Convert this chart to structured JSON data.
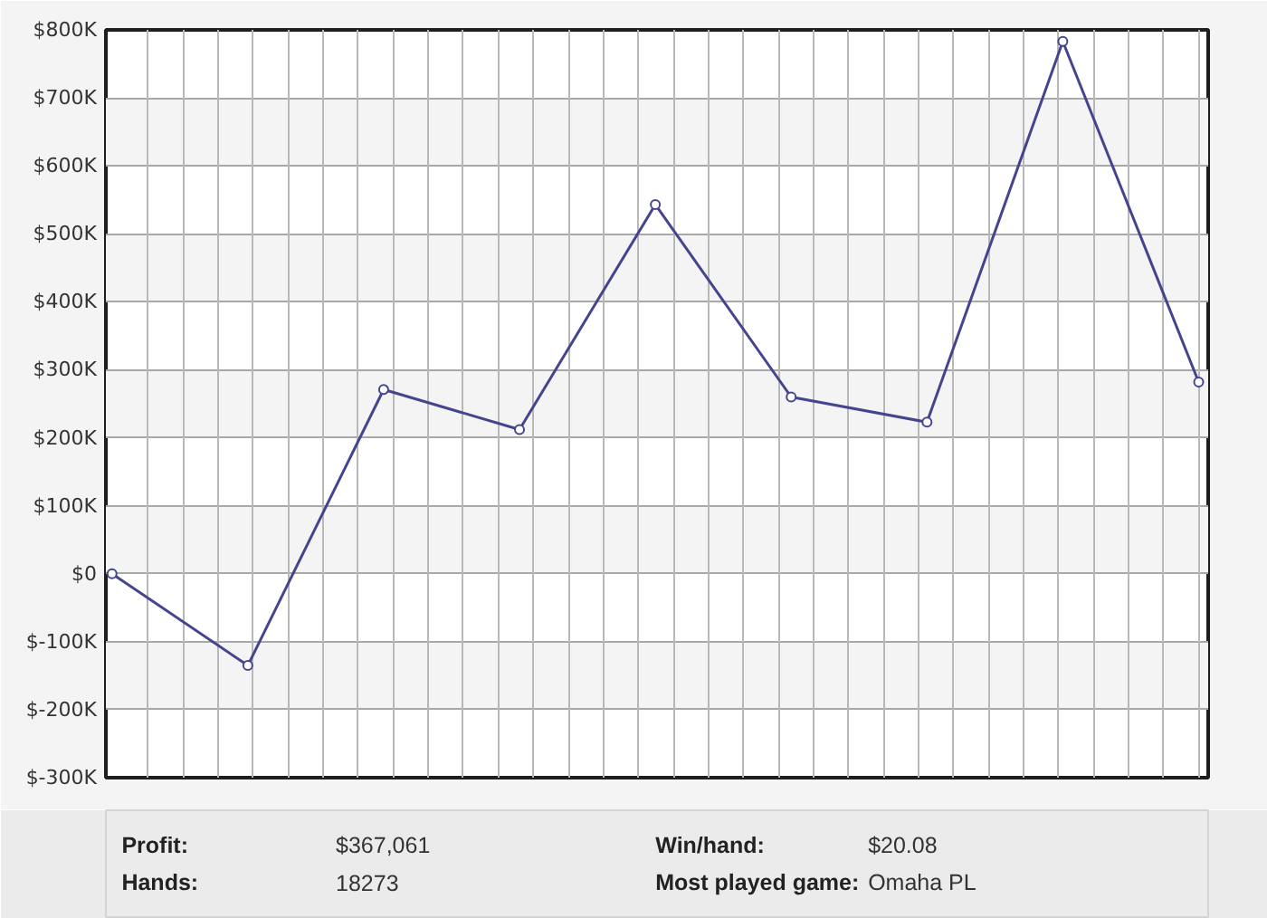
{
  "chart_data": {
    "type": "line",
    "categories": [
      null,
      null,
      null,
      null,
      null,
      null,
      null,
      null,
      null
    ],
    "series": [
      {
        "color": "#45458f",
        "values": [
          0,
          -135000,
          271000,
          212000,
          543000,
          260000,
          223000,
          783000,
          282000
        ]
      }
    ],
    "ylim": [
      -300000,
      800000
    ],
    "yticks": [
      {
        "value": -300000,
        "label": "$-300K"
      },
      {
        "value": -200000,
        "label": "$-200K"
      },
      {
        "value": -100000,
        "label": "$-100K"
      },
      {
        "value": 0,
        "label": "$0"
      },
      {
        "value": 100000,
        "label": "$100K"
      },
      {
        "value": 200000,
        "label": "$200K"
      },
      {
        "value": 300000,
        "label": "$300K"
      },
      {
        "value": 400000,
        "label": "$400K"
      },
      {
        "value": 500000,
        "label": "$500K"
      },
      {
        "value": 600000,
        "label": "$600K"
      },
      {
        "value": 700000,
        "label": "$700K"
      },
      {
        "value": 800000,
        "label": "$800K"
      }
    ],
    "grid": true,
    "marker": "circle",
    "line_style": "solid",
    "annotations": [
      "Profit:",
      "$367,061",
      "Win/hand:",
      "$20.08",
      "Hands:",
      "18273",
      "Most played game:",
      "Omaha PL"
    ]
  }
}
